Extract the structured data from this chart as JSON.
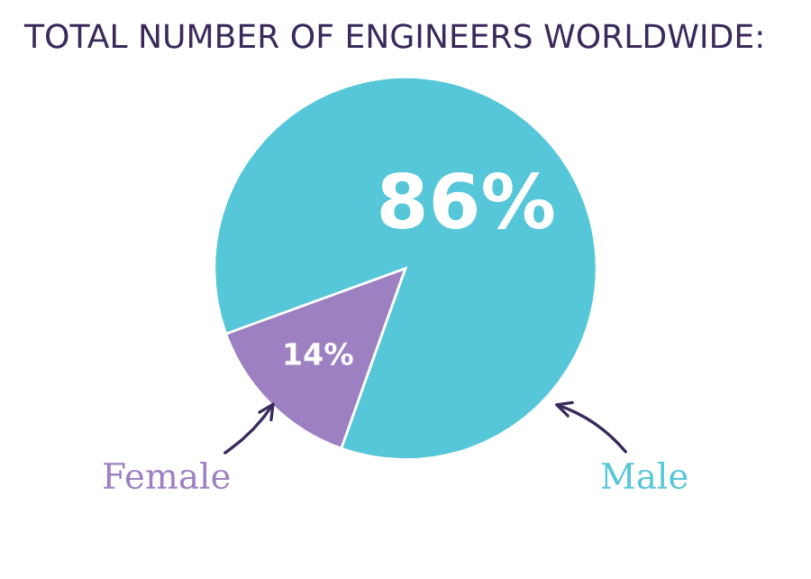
{
  "chart_data": {
    "type": "pie",
    "title": "TOTAL NUMBER OF ENGINEERS WORLDWIDE:",
    "categories": [
      "Female",
      "Male"
    ],
    "values": [
      14,
      86
    ],
    "colors": [
      "#9d80c2",
      "#56c6d9"
    ],
    "value_labels": [
      "14%",
      "86%"
    ],
    "legend": false
  }
}
